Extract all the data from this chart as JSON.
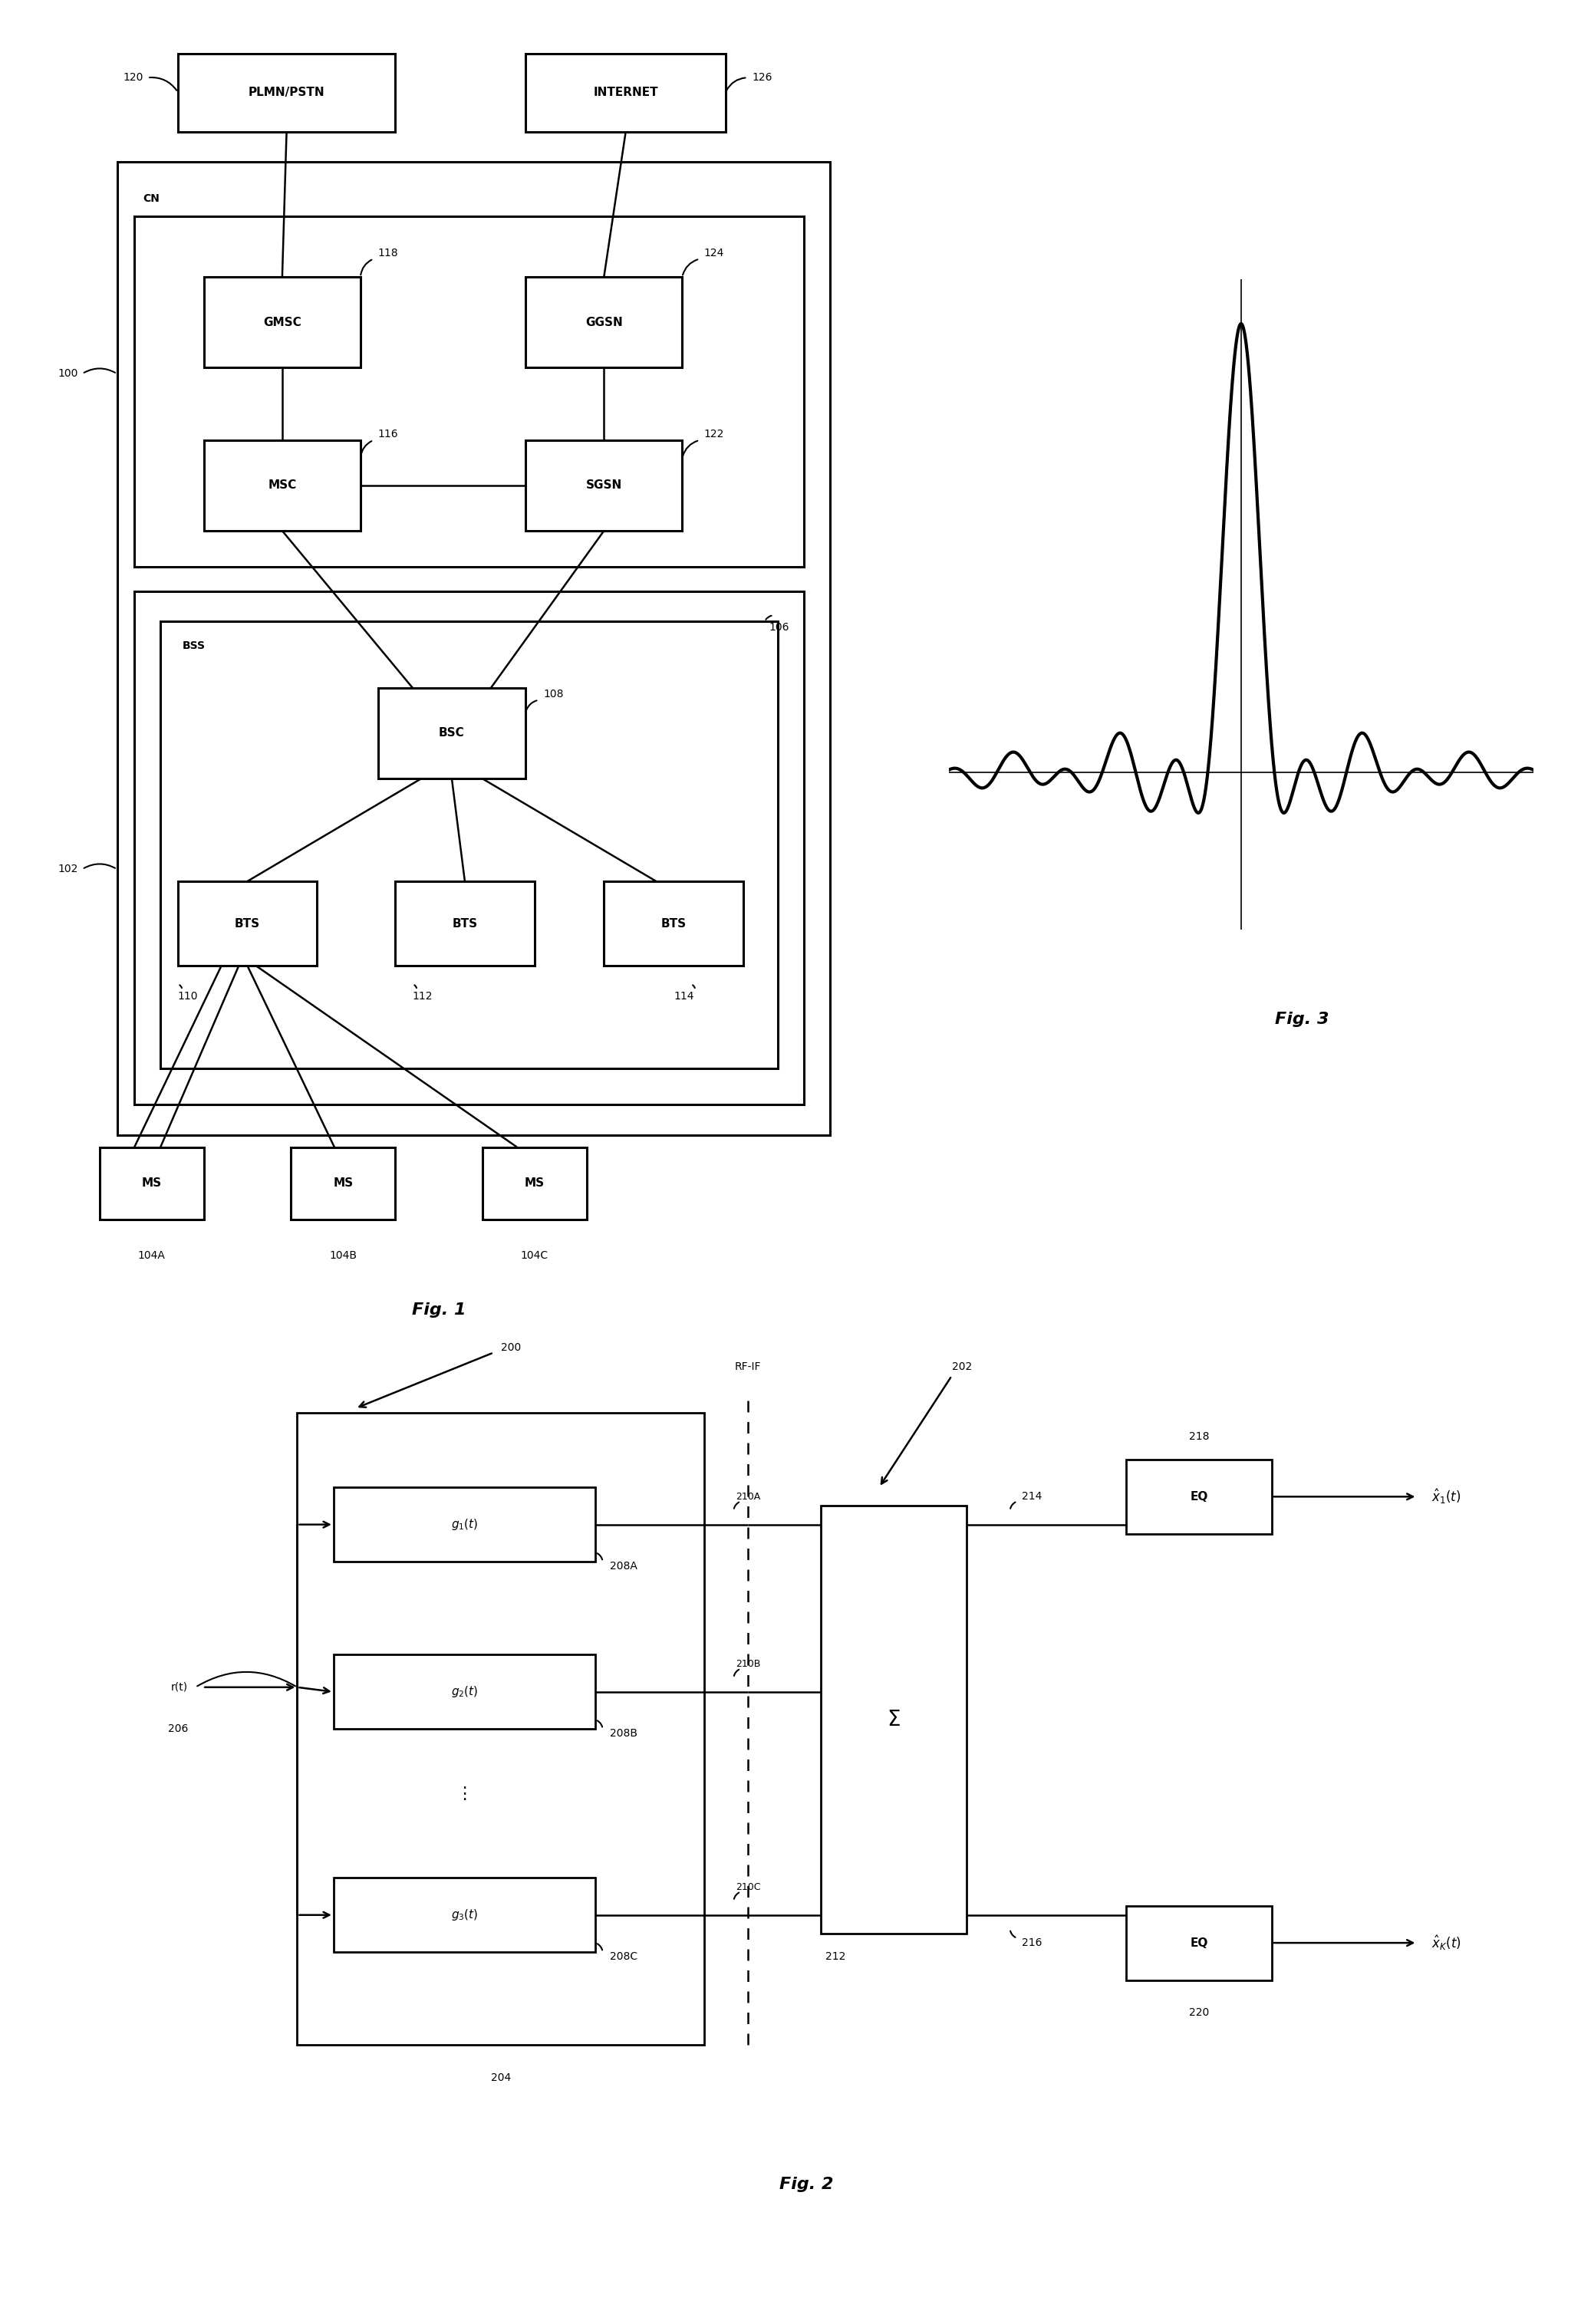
{
  "fig_width": 20.61,
  "fig_height": 30.3,
  "bg_color": "#ffffff",
  "fig1_label": "Fig. 1",
  "fig2_label": "Fig. 2",
  "fig3_label": "Fig. 3",
  "nodes": {
    "plmn": "PLMN/PSTN",
    "internet": "INTERNET",
    "gmsc": "GMSC",
    "ggsn": "GGSN",
    "msc": "MSC",
    "sgsn": "SGSN",
    "bsc": "BSC",
    "bts": "BTS",
    "ms": "MS",
    "cn": "CN",
    "bss": "BSS",
    "eq": "EQ",
    "sigma": "Σ"
  },
  "refs1": [
    "120",
    "126",
    "118",
    "124",
    "116",
    "122",
    "100",
    "102",
    "106",
    "108",
    "110",
    "112",
    "114",
    "104A",
    "104B",
    "104C"
  ],
  "refs2": [
    "200",
    "202",
    "204",
    "206",
    "208A",
    "208B",
    "208C",
    "210A",
    "210B",
    "210C",
    "212",
    "214",
    "216",
    "218",
    "220",
    "RF-IF"
  ]
}
